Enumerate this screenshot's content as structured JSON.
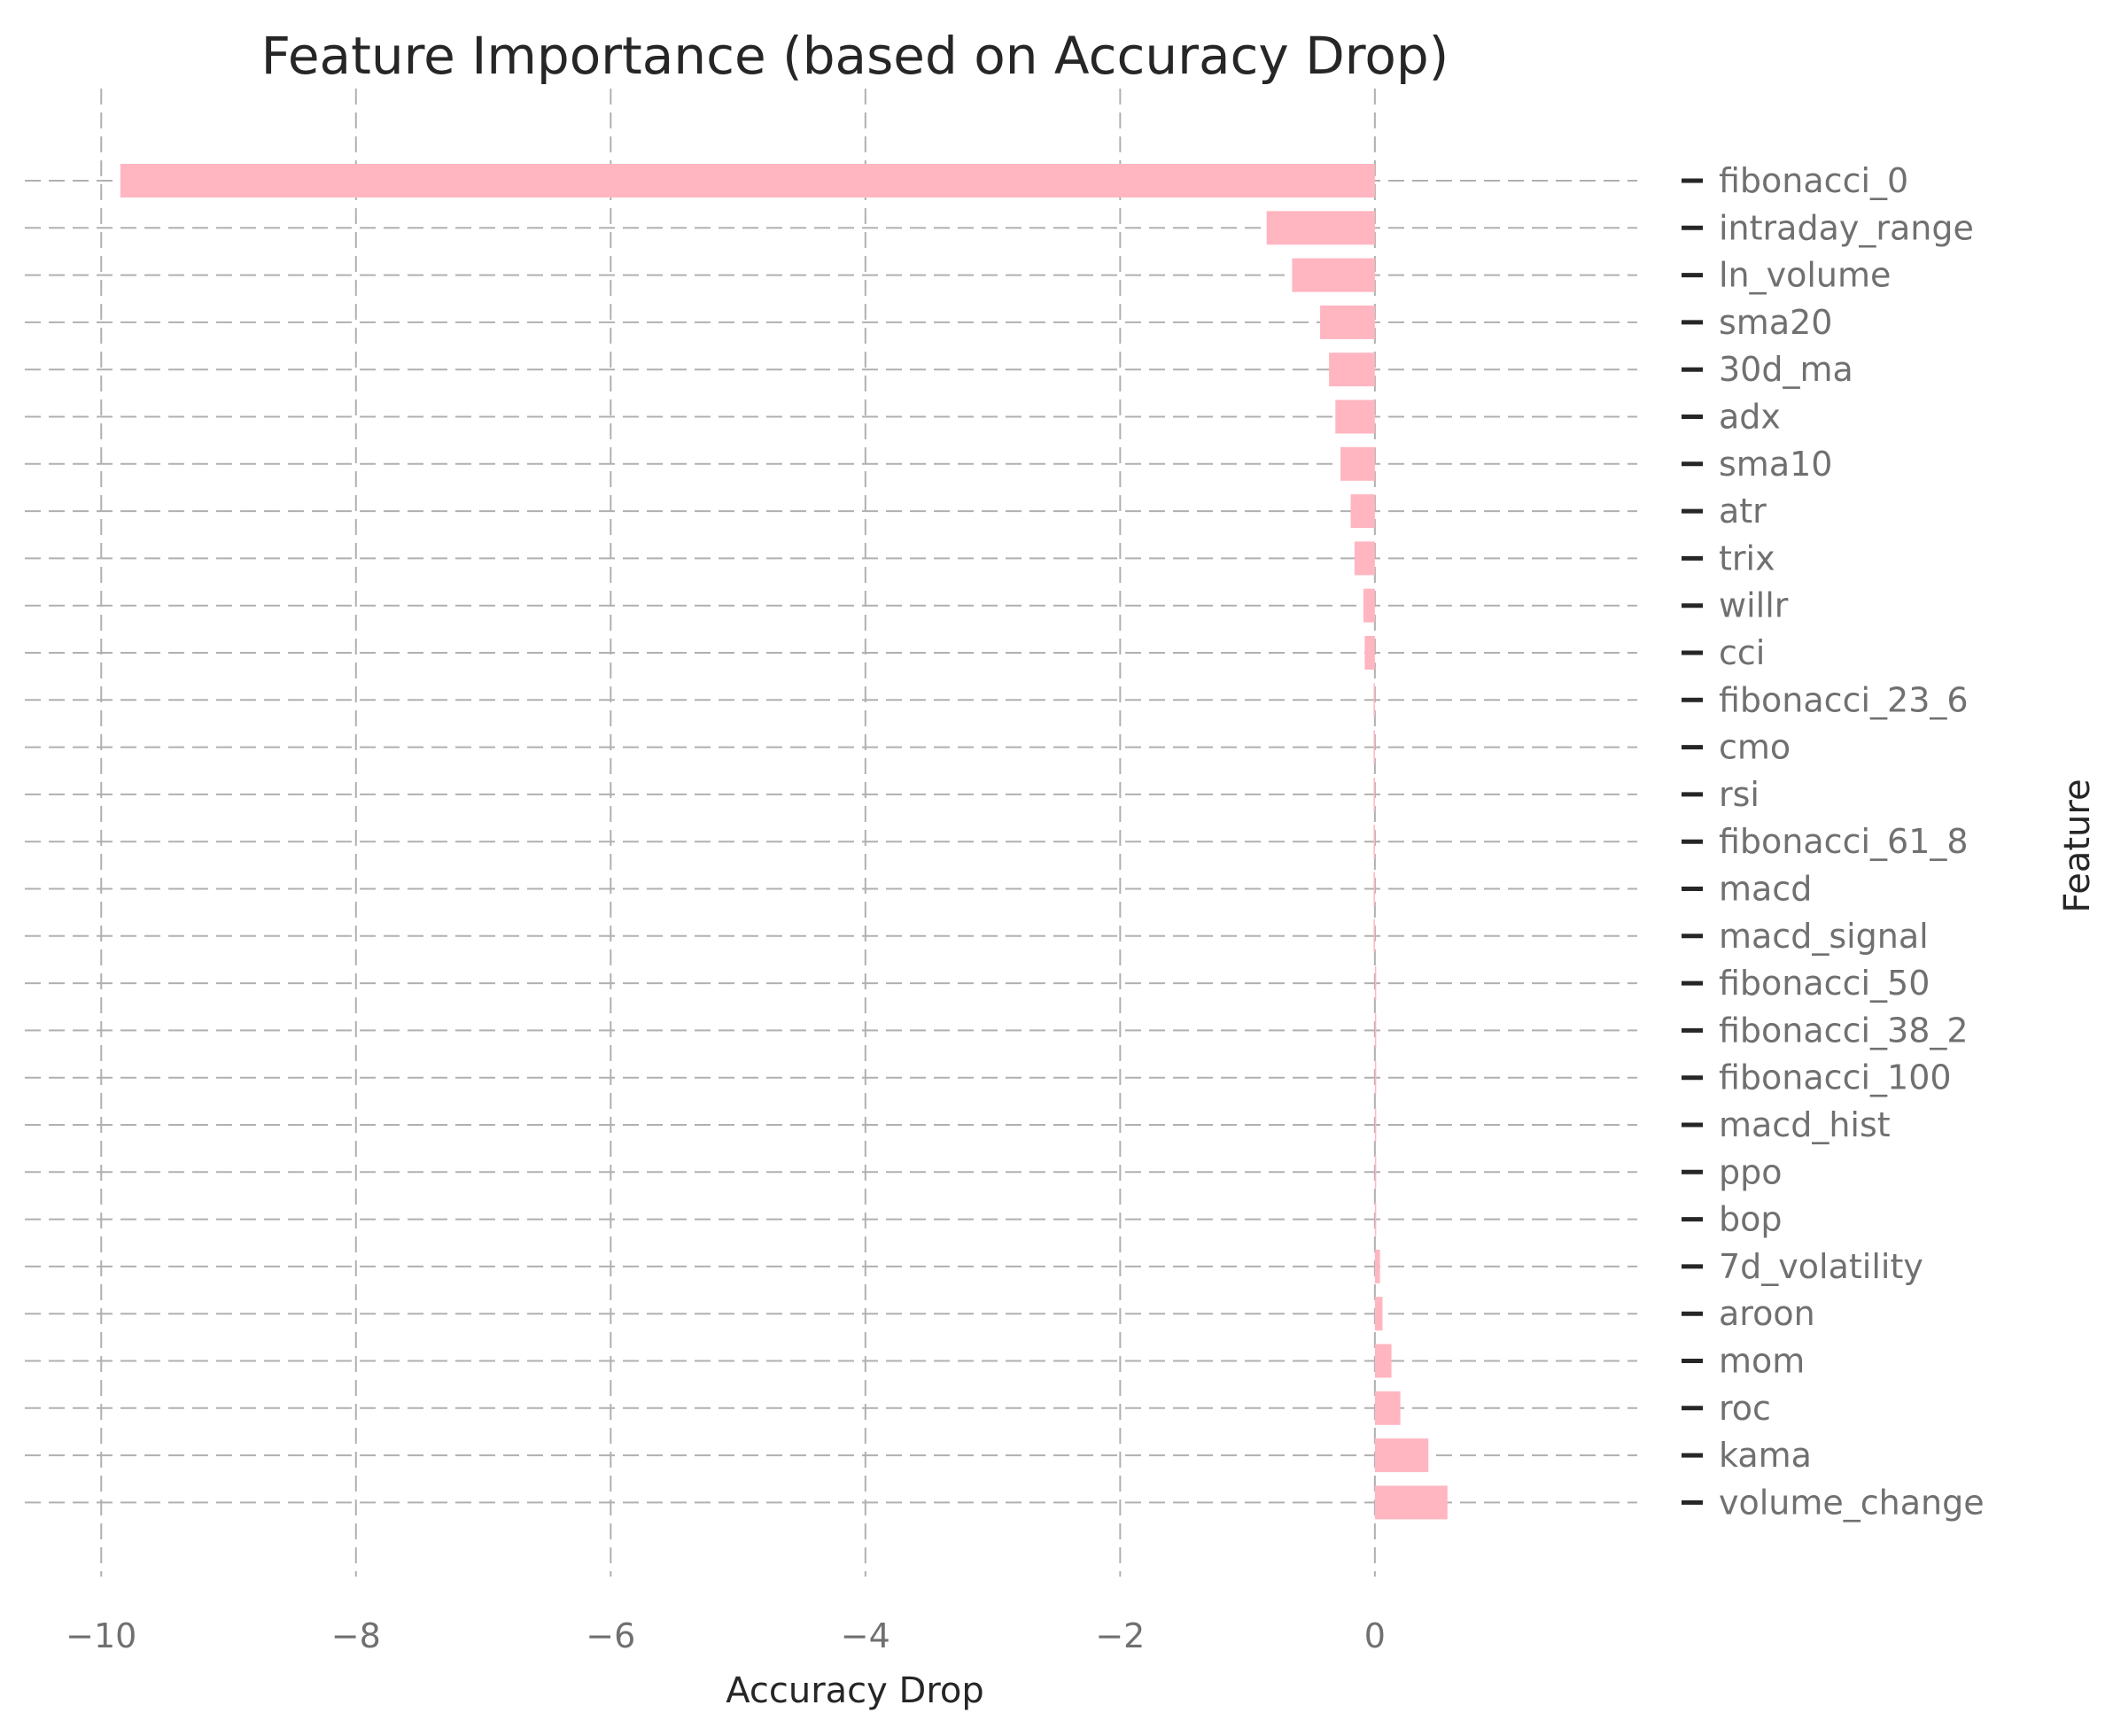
{
  "chart_data": {
    "type": "bar",
    "orientation": "horizontal",
    "title": "Feature Importance (based on Accuracy Drop)",
    "xlabel": "Accuracy Drop",
    "ylabel": "Feature",
    "xlim": [
      -10.6,
      1.1
    ],
    "xticks": [
      -10,
      -8,
      -6,
      -4,
      -2,
      0
    ],
    "xtick_labels": [
      "−10",
      "−8",
      "−6",
      "−4",
      "−2",
      "0"
    ],
    "y_axis_position": "right",
    "grid": true,
    "legend": false,
    "bar_color": "#ffb6c1",
    "categories": [
      "fibonacci_0",
      "intraday_range",
      "ln_volume",
      "sma20",
      "30d_ma",
      "adx",
      "sma10",
      "atr",
      "trix",
      "willr",
      "cci",
      "fibonacci_23_6",
      "cmo",
      "rsi",
      "fibonacci_61_8",
      "macd",
      "macd_signal",
      "fibonacci_50",
      "fibonacci_38_2",
      "fibonacci_100",
      "macd_hist",
      "ppo",
      "bop",
      "7d_volatility",
      "aroon",
      "mom",
      "roc",
      "kama",
      "volume_change"
    ],
    "values": [
      -9.85,
      -0.85,
      -0.65,
      -0.43,
      -0.36,
      -0.31,
      -0.27,
      -0.19,
      -0.16,
      -0.09,
      -0.08,
      -0.01,
      -0.01,
      -0.01,
      -0.01,
      -0.01,
      -0.01,
      0,
      0,
      0,
      0,
      0,
      0,
      0.04,
      0.06,
      0.13,
      0.2,
      0.42,
      0.57
    ]
  }
}
